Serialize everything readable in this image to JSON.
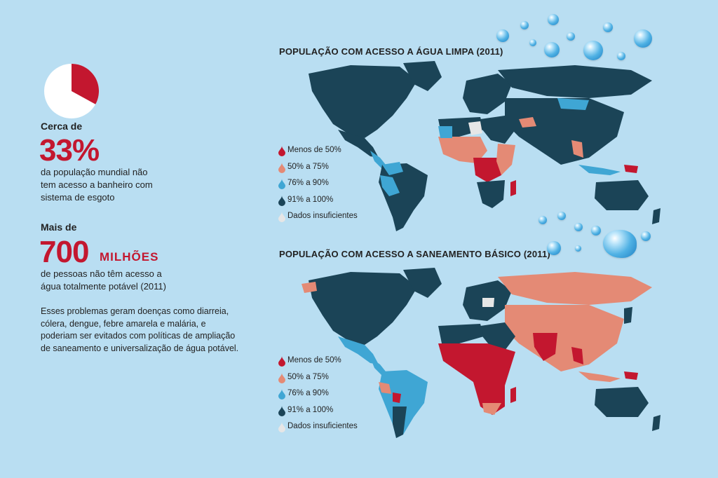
{
  "colors": {
    "background": "#b9def2",
    "accent_red": "#c3172f",
    "pie_fill": "#c3172f",
    "pie_bg": "#ffffff",
    "category_lt50": "#c3172f",
    "category_50_75": "#e48a75",
    "category_76_90": "#3fa6d4",
    "category_91_100": "#1b4457",
    "category_nodata": "#e6e6e6"
  },
  "stat1": {
    "prefix": "Cerca de",
    "value": "33%",
    "pie_fraction": 0.33,
    "description_lines": [
      "da população mundial não",
      "tem acesso a banheiro com",
      "sistema de esgoto"
    ]
  },
  "stat2": {
    "prefix": "Mais de",
    "value": "700",
    "suffix": "MILHÕES",
    "description_lines": [
      "de pessoas não têm acesso a",
      "água totalmente potável (2011)"
    ]
  },
  "body_text_lines": [
    "Esses problemas geram doenças como diarreia,",
    "cólera, dengue, febre amarela e malária, e",
    "poderiam ser evitados com políticas de ampliação",
    "de saneamento e universalização de água potável."
  ],
  "maps": [
    {
      "title": "POPULAÇÃO COM ACESSO A ÁGUA LIMPA (2011)",
      "legend": [
        "Menos de 50%",
        "50% a 75%",
        "76% a 90%",
        "91% a 100%",
        "Dados insuficientes"
      ]
    },
    {
      "title": "POPULAÇÃO COM ACESSO A SANEAMENTO BÁSICO (2011)",
      "legend": [
        "Menos de 50%",
        "50% a 75%",
        "76% a 90%",
        "91% a 100%",
        "Dados insuficientes"
      ]
    }
  ],
  "legend_icons": [
    "drop-red-icon",
    "drop-salmon-icon",
    "drop-blue-icon",
    "drop-navy-icon",
    "drop-gray-icon"
  ]
}
